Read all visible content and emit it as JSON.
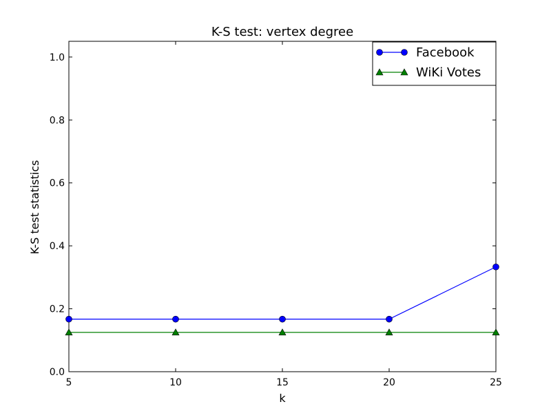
{
  "chart_data": {
    "type": "line",
    "title": "K-S test: vertex degree",
    "xlabel": "k",
    "ylabel": "K-S test statistics",
    "xlim": [
      5,
      25
    ],
    "ylim": [
      0.0,
      1.05
    ],
    "x": [
      5,
      10,
      15,
      20,
      25
    ],
    "xticks": [
      "5",
      "10",
      "15",
      "20",
      "25"
    ],
    "yticks": [
      "0.0",
      "0.2",
      "0.4",
      "0.6",
      "0.8",
      "1.0"
    ],
    "ytick_values": [
      0.0,
      0.2,
      0.4,
      0.6,
      0.8,
      1.0
    ],
    "grid": false,
    "legend_position": "top-right",
    "series": [
      {
        "name": "Facebook",
        "values": [
          0.167,
          0.167,
          0.167,
          0.167,
          0.333
        ],
        "color": "#0000ff",
        "marker": "circle"
      },
      {
        "name": "WiKi Votes",
        "values": [
          0.125,
          0.125,
          0.125,
          0.125,
          0.125
        ],
        "color": "#008000",
        "marker": "triangle"
      }
    ]
  }
}
